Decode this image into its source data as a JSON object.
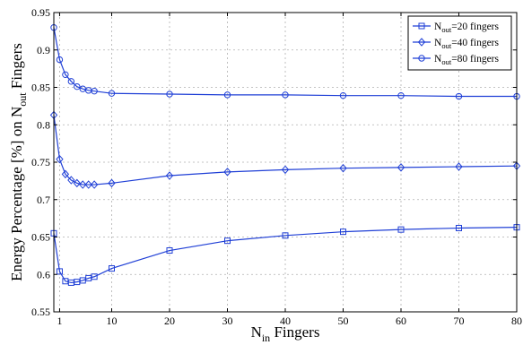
{
  "chart_data": {
    "type": "line",
    "xlabel": {
      "main": "N",
      "sub": "in",
      "rest": " Fingers"
    },
    "ylabel": {
      "pre": "Energy Percentage [%] on N",
      "sub": "out",
      "rest": " Fingers"
    },
    "xlim": [
      0,
      80
    ],
    "ylim": [
      0.55,
      0.95
    ],
    "xticks": [
      1,
      10,
      20,
      30,
      40,
      50,
      60,
      70,
      80
    ],
    "xtick_labels": [
      "1",
      "10",
      "20",
      "30",
      "40",
      "50",
      "60",
      "70",
      "80"
    ],
    "yticks": [
      0.55,
      0.6,
      0.65,
      0.7,
      0.75,
      0.8,
      0.85,
      0.9,
      0.95
    ],
    "ytick_labels": [
      "0.55",
      "0.6",
      "0.65",
      "0.7",
      "0.75",
      "0.8",
      "0.85",
      "0.9",
      "0.95"
    ],
    "grid": true,
    "legend_position": "top-right",
    "line_color": "#1f3fd6",
    "series": [
      {
        "name": "N_out=20 fingers",
        "legend": {
          "main": "N",
          "sub": "out",
          "rest": "=20 fingers"
        },
        "marker": "square",
        "x": [
          0,
          1,
          2,
          3,
          4,
          5,
          6,
          7,
          10,
          20,
          30,
          40,
          50,
          60,
          70,
          80
        ],
        "y": [
          0.655,
          0.604,
          0.591,
          0.589,
          0.59,
          0.592,
          0.595,
          0.597,
          0.608,
          0.632,
          0.645,
          0.652,
          0.657,
          0.66,
          0.662,
          0.663
        ]
      },
      {
        "name": "N_out=40 fingers",
        "legend": {
          "main": "N",
          "sub": "out",
          "rest": "=40 fingers"
        },
        "marker": "diamond",
        "x": [
          0,
          1,
          2,
          3,
          4,
          5,
          6,
          7,
          10,
          20,
          30,
          40,
          50,
          60,
          70,
          80
        ],
        "y": [
          0.813,
          0.754,
          0.734,
          0.726,
          0.722,
          0.72,
          0.72,
          0.72,
          0.722,
          0.732,
          0.737,
          0.74,
          0.742,
          0.743,
          0.744,
          0.745
        ]
      },
      {
        "name": "N_out=80 fingers",
        "legend": {
          "main": "N",
          "sub": "out",
          "rest": "=80 fingers"
        },
        "marker": "circle",
        "x": [
          0,
          1,
          2,
          3,
          4,
          5,
          6,
          7,
          10,
          20,
          30,
          40,
          50,
          60,
          70,
          80
        ],
        "y": [
          0.93,
          0.887,
          0.867,
          0.858,
          0.851,
          0.848,
          0.846,
          0.845,
          0.842,
          0.841,
          0.84,
          0.84,
          0.839,
          0.839,
          0.838,
          0.838
        ]
      }
    ]
  }
}
